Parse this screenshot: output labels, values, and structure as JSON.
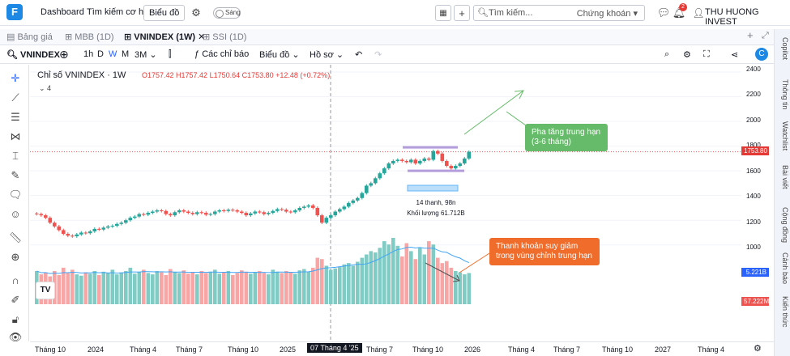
{
  "app": {
    "nav": [
      "Dashboard",
      "Tìm kiếm cơ hội"
    ],
    "chart_button": "Biểu đồ",
    "theme_toggle": "Sáng",
    "search": {
      "placeholder": "Tìm kiếm...",
      "category": "Chứng khoán"
    },
    "notification_count": "2",
    "user_name": "THU HUONG INVEST"
  },
  "tabs": [
    {
      "label": "Bảng giá"
    },
    {
      "label": "MBB (1D)"
    },
    {
      "label": "VNINDEX (1W)"
    },
    {
      "label": "SSI (1D)"
    }
  ],
  "toolbar": {
    "symbol": "VNINDEX",
    "intervals": [
      "1h",
      "D",
      "W",
      "M",
      "3M"
    ],
    "indicators": "Các chỉ báo",
    "chart_type": "Biểu đồ",
    "profile": "Hồ sơ"
  },
  "right_panel": [
    "Copilot",
    "Thông tin",
    "Watchlist",
    "Bài viết",
    "Cộng đồng",
    "Cảnh báo",
    "Kiến thức"
  ],
  "legend": {
    "title": "Chỉ số VNINDEX · 1W",
    "ohlc": "O1757.42 H1757.42 L1750.64 C1753.80 +12.48 (+0.72%)",
    "indicator_count": "4"
  },
  "annotations": {
    "callout_up": "Pha tăng trung hạn\n(3-6 tháng)",
    "callout_liquidity": "Thanh khoản suy giảm\ntrong vùng chỉnh trung hạn",
    "measure_bars": "14 thanh, 98n",
    "measure_volume": "Khối lượng 61.712B"
  },
  "price_tags": {
    "last_price": "1753.80",
    "volume_ma": "5.221B",
    "volume": "57.222M"
  },
  "colors": {
    "up": "#26a69a",
    "down": "#ef5350",
    "callout_green": "#66bb6a",
    "callout_orange": "#ef6c2b",
    "accent": "#2962ff"
  },
  "chart_data": {
    "type": "candlestick",
    "title": "Chỉ số VNINDEX · 1W",
    "y_ticks": [
      2400,
      2200,
      2000,
      1800,
      1600,
      1400,
      1200,
      1000
    ],
    "ylim": [
      900,
      2420
    ],
    "x_tick_labels": [
      "Tháng 10",
      "2024",
      "Tháng 4",
      "Tháng 7",
      "Tháng 10",
      "2025",
      "07 Tháng 4 '25",
      "Tháng 7",
      "Tháng 10",
      "2026",
      "Tháng 4",
      "Tháng 7",
      "Tháng 10",
      "2027",
      "Tháng 4"
    ],
    "closes": [
      1250,
      1240,
      1220,
      1180,
      1150,
      1120,
      1090,
      1075,
      1070,
      1085,
      1100,
      1095,
      1110,
      1130,
      1125,
      1140,
      1150,
      1155,
      1170,
      1180,
      1200,
      1220,
      1230,
      1250,
      1245,
      1260,
      1270,
      1280,
      1275,
      1250,
      1240,
      1265,
      1280,
      1270,
      1260,
      1250,
      1265,
      1260,
      1245,
      1250,
      1270,
      1280,
      1275,
      1285,
      1280,
      1270,
      1260,
      1240,
      1255,
      1270,
      1265,
      1250,
      1260,
      1275,
      1290,
      1285,
      1270,
      1265,
      1280,
      1300,
      1310,
      1320,
      1300,
      1240,
      1180,
      1220,
      1240,
      1270,
      1290,
      1310,
      1340,
      1360,
      1380,
      1420,
      1480,
      1500,
      1540,
      1580,
      1620,
      1660,
      1680,
      1690,
      1680,
      1670,
      1690,
      1660,
      1680,
      1700,
      1690,
      1760,
      1740,
      1680,
      1640,
      1620,
      1640,
      1660,
      1700,
      1753.8
    ],
    "volumes": [
      0.5,
      0.45,
      0.48,
      0.42,
      0.5,
      0.44,
      0.55,
      0.47,
      0.52,
      0.45,
      0.43,
      0.48,
      0.46,
      0.5,
      0.44,
      0.49,
      0.47,
      0.52,
      0.45,
      0.48,
      0.5,
      0.55,
      0.46,
      0.49,
      0.52,
      0.47,
      0.45,
      0.5,
      0.48,
      0.44,
      0.53,
      0.49,
      0.47,
      0.51,
      0.46,
      0.48,
      0.45,
      0.5,
      0.47,
      0.49,
      0.52,
      0.46,
      0.48,
      0.5,
      0.44,
      0.47,
      0.51,
      0.49,
      0.46,
      0.48,
      0.5,
      0.47,
      0.45,
      0.52,
      0.49,
      0.47,
      0.5,
      0.48,
      0.46,
      0.51,
      0.53,
      0.49,
      0.55,
      0.7,
      0.68,
      0.58,
      0.52,
      0.54,
      0.56,
      0.6,
      0.62,
      0.58,
      0.64,
      0.7,
      0.75,
      0.8,
      0.78,
      0.85,
      0.95,
      0.9,
      1.0,
      0.88,
      0.72,
      0.92,
      0.8,
      0.68,
      0.85,
      0.75,
      0.95,
      0.9,
      0.7,
      0.62,
      0.65,
      0.55,
      0.5,
      0.48,
      0.45,
      0.47
    ],
    "current_price": 1753.8,
    "volume_ma_label": "5.221B"
  }
}
